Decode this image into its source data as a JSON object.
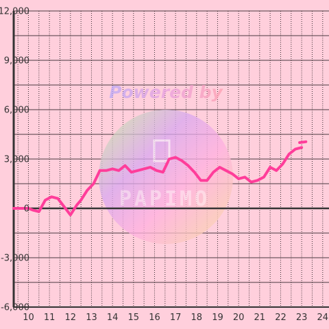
{
  "chart_data": {
    "type": "line",
    "x": [
      9.3,
      9.7,
      10.0,
      10.2,
      10.5,
      10.8,
      11.1,
      11.4,
      11.7,
      12.0,
      12.3,
      12.5,
      12.8,
      13.1,
      13.4,
      13.7,
      14.0,
      14.3,
      14.6,
      14.9,
      15.2,
      15.5,
      15.8,
      16.1,
      16.4,
      16.7,
      17.0,
      17.3,
      17.6,
      17.9,
      18.2,
      18.5,
      18.8,
      19.1,
      19.4,
      19.7,
      20.0,
      20.3,
      20.6,
      20.9,
      21.2,
      21.5,
      21.8,
      22.1,
      22.4,
      22.7,
      23.0
    ],
    "values": [
      0,
      0,
      0,
      -100,
      -200,
      500,
      700,
      600,
      100,
      -400,
      200,
      500,
      1100,
      1500,
      2300,
      2300,
      2400,
      2300,
      2600,
      2200,
      2300,
      2400,
      2500,
      2300,
      2200,
      3000,
      3100,
      2900,
      2600,
      2200,
      1700,
      1700,
      2200,
      2500,
      2300,
      2100,
      1800,
      1900,
      1600,
      1700,
      1900,
      2500,
      2300,
      2700,
      3300,
      3600,
      3700
    ],
    "line_end": {
      "x": [
        22.9,
        23.2
      ],
      "values": [
        4000,
        4050
      ]
    },
    "xlim": [
      9.3,
      24.3
    ],
    "ylim": [
      -6000,
      12000
    ],
    "xticks": [
      10,
      11,
      12,
      13,
      14,
      15,
      16,
      17,
      18,
      19,
      20,
      21,
      22,
      23,
      24
    ],
    "yticks": [
      -6000,
      -3000,
      0,
      3000,
      6000,
      9000,
      12000
    ],
    "ytick_labels": [
      "-6,000",
      "-3,000",
      "0",
      "3,000",
      "6,000",
      "9,000",
      "12,000"
    ],
    "xtick_labels": [
      "10",
      "11",
      "12",
      "13",
      "14",
      "15",
      "16",
      "17",
      "18",
      "19",
      "20",
      "21",
      "22",
      "23",
      "24"
    ],
    "grid": true,
    "title": "",
    "xlabel": "",
    "ylabel": ""
  },
  "colors": {
    "background": "#ffcfdc",
    "line": "#ff3d9a",
    "grid_h": "#4a3a40",
    "grid_v": "#3a2f33",
    "axis": "#333333",
    "zero_line": "#333333"
  },
  "watermark": {
    "powered_by": "Powered by",
    "brand": "PAPIMO"
  }
}
